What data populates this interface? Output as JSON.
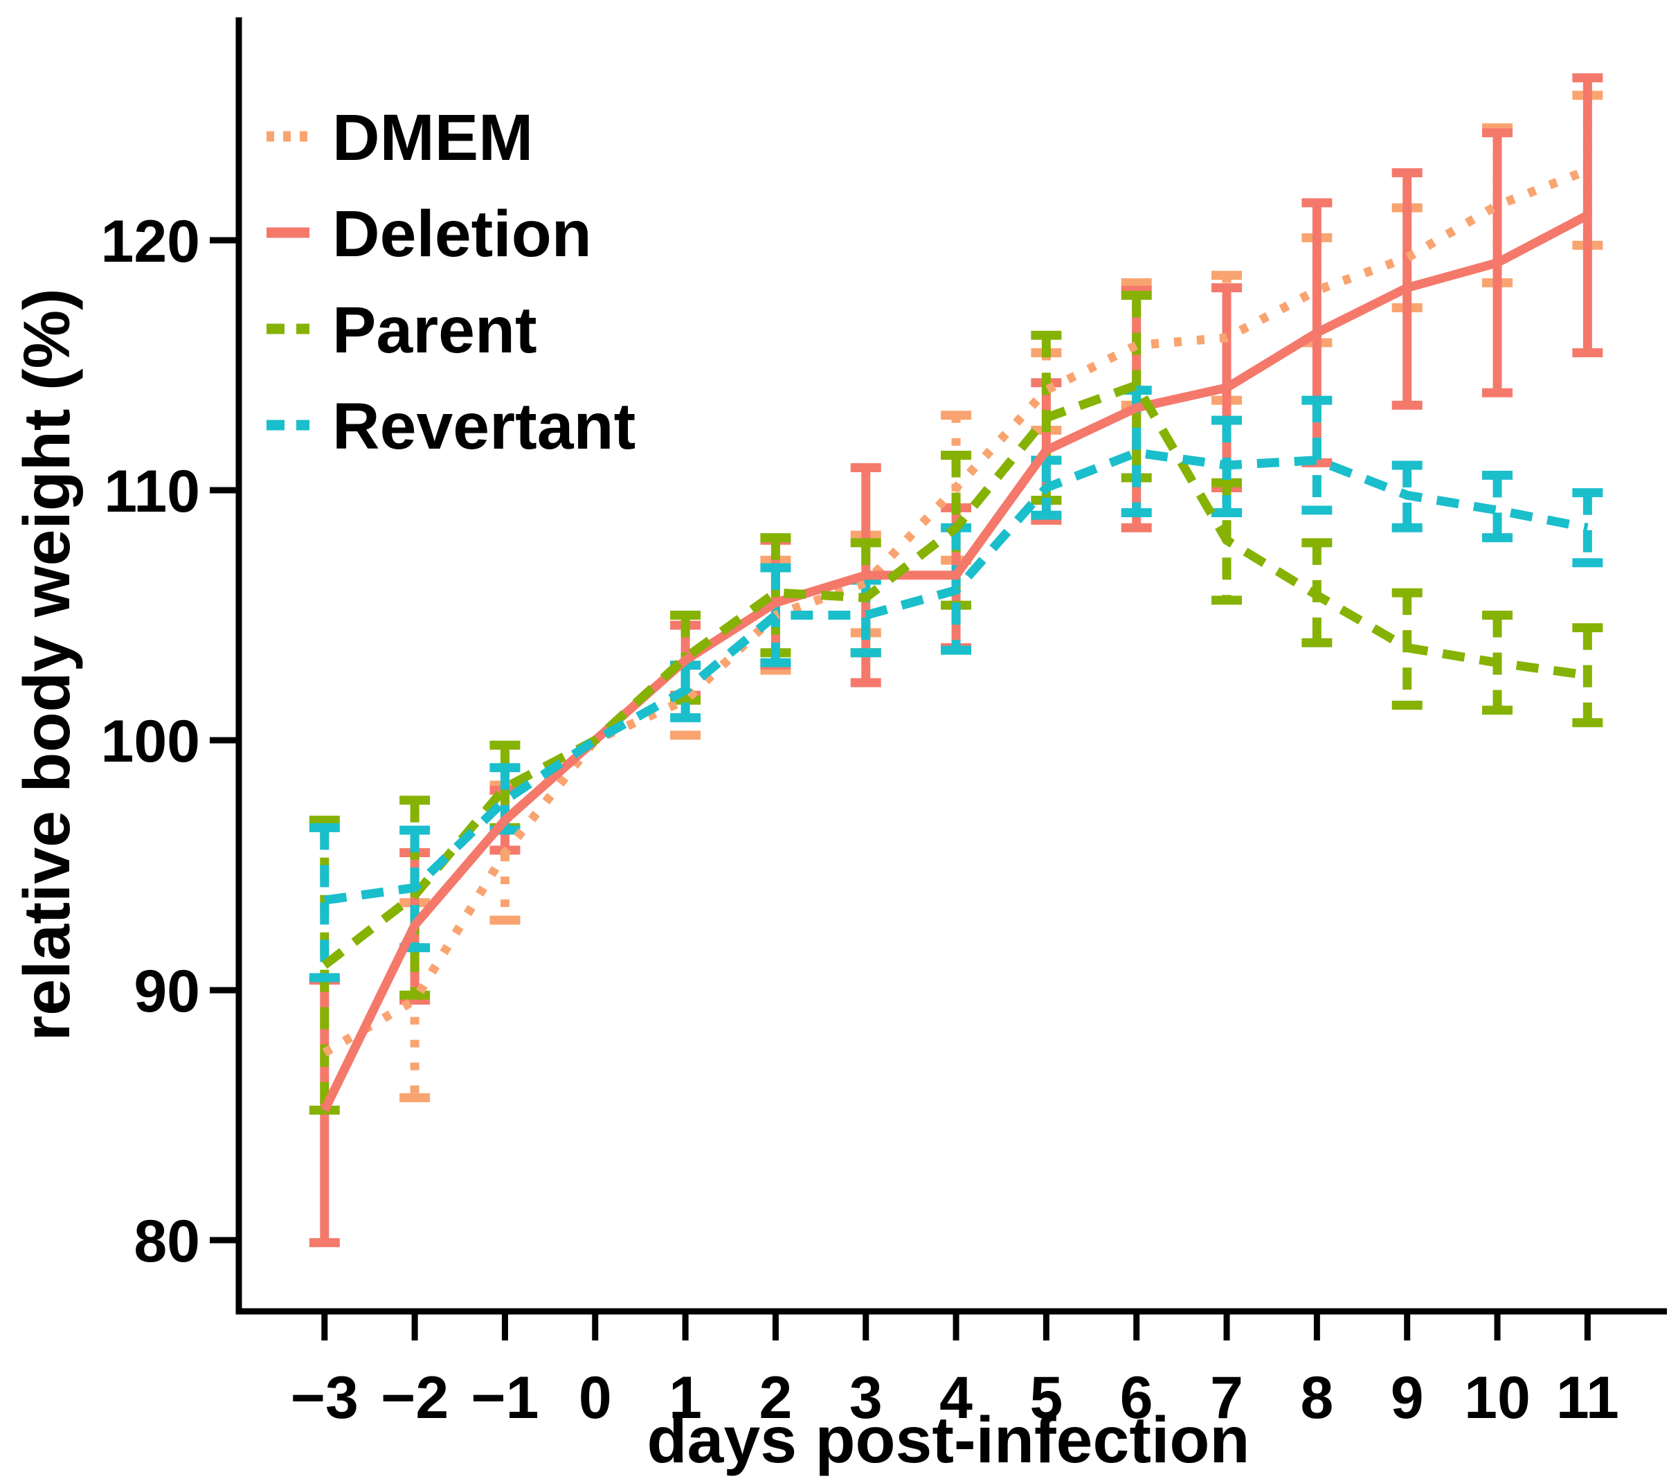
{
  "figure": {
    "background": "#FFFFFF"
  },
  "legend": {
    "position": "upper-left-inside",
    "items": [
      {
        "id": "dmem",
        "label": "DMEM"
      },
      {
        "id": "deletion",
        "label": "Deletion"
      },
      {
        "id": "parent",
        "label": "Parent"
      },
      {
        "id": "revertant",
        "label": "Revertant"
      }
    ]
  },
  "chart_data": {
    "type": "line",
    "title": "",
    "xlabel": "days post-infection",
    "ylabel": "relative body weight (%)",
    "grid": false,
    "error_bars": true,
    "x": [
      -3,
      -2,
      -1,
      0,
      1,
      2,
      3,
      4,
      5,
      6,
      7,
      8,
      9,
      10,
      11
    ],
    "x_ticklabels": [
      "−3",
      "−2",
      "−1",
      "0",
      "1",
      "2",
      "3",
      "4",
      "5",
      "6",
      "7",
      "8",
      "9",
      "10",
      "11"
    ],
    "y_ticks": [
      80,
      90,
      100,
      110,
      120
    ],
    "y_ticklabels": [
      "80",
      "90",
      "100",
      "110",
      "120"
    ],
    "xlim": [
      -3.95,
      11.78
    ],
    "ylim": [
      77.15,
      128.92
    ],
    "series": [
      {
        "id": "dmem",
        "name": "DMEM",
        "color": "#F9A470",
        "style": "dotted",
        "values": [
          87.5,
          89.6,
          95.5,
          100.0,
          101.6,
          105.0,
          106.3,
          110.1,
          114.0,
          115.8,
          116.1,
          118.0,
          119.3,
          121.4,
          122.8
        ],
        "err_lo": [
          null,
          85.7,
          92.8,
          null,
          100.2,
          102.8,
          104.3,
          107.2,
          112.4,
          113.4,
          113.6,
          115.9,
          117.3,
          118.3,
          119.8
        ],
        "err_hi": [
          null,
          93.5,
          98.2,
          null,
          103.0,
          107.2,
          108.2,
          113.0,
          115.5,
          118.3,
          118.6,
          120.1,
          121.3,
          124.5,
          125.8
        ]
      },
      {
        "id": "deletion",
        "name": "Deletion",
        "color": "#F4796B",
        "style": "solid",
        "values": [
          85.2,
          92.6,
          96.8,
          100.0,
          103.2,
          105.5,
          106.6,
          106.6,
          111.6,
          113.3,
          114.1,
          116.3,
          118.1,
          119.1,
          121.0
        ],
        "err_lo": [
          79.9,
          89.6,
          95.6,
          null,
          101.8,
          103.0,
          102.3,
          103.7,
          108.8,
          108.5,
          110.1,
          111.1,
          113.4,
          113.9,
          115.5
        ],
        "err_hi": [
          90.4,
          95.5,
          98.0,
          null,
          104.6,
          108.0,
          110.9,
          109.3,
          114.3,
          118.0,
          118.1,
          121.5,
          122.7,
          124.3,
          126.5
        ]
      },
      {
        "id": "parent",
        "name": "Parent",
        "color": "#86B204",
        "style": "dashed",
        "values": [
          91.0,
          93.8,
          98.1,
          100.0,
          103.3,
          105.9,
          105.7,
          108.5,
          112.9,
          114.2,
          108.0,
          105.8,
          103.7,
          103.1,
          102.6
        ],
        "err_lo": [
          85.2,
          89.8,
          96.5,
          null,
          101.6,
          103.5,
          103.5,
          105.4,
          109.6,
          110.5,
          105.6,
          103.9,
          101.4,
          101.2,
          100.7
        ],
        "err_hi": [
          96.8,
          97.6,
          99.8,
          null,
          105.0,
          108.1,
          107.9,
          111.4,
          116.2,
          117.8,
          110.3,
          107.9,
          105.9,
          105.0,
          104.5
        ]
      },
      {
        "id": "revertant",
        "name": "Revertant",
        "color": "#1BBECB",
        "style": "dashed",
        "values": [
          93.6,
          94.1,
          97.6,
          100.0,
          102.0,
          105.0,
          105.0,
          106.0,
          110.1,
          111.5,
          111.0,
          111.2,
          109.8,
          109.2,
          108.5
        ],
        "err_lo": [
          90.5,
          91.7,
          96.4,
          null,
          100.9,
          103.1,
          103.5,
          103.6,
          109.0,
          109.1,
          109.1,
          109.2,
          108.5,
          108.1,
          107.1
        ],
        "err_hi": [
          96.5,
          96.4,
          98.9,
          null,
          103.0,
          106.9,
          106.4,
          108.5,
          111.2,
          114.0,
          112.8,
          113.6,
          111.0,
          110.6,
          109.9
        ]
      }
    ]
  }
}
